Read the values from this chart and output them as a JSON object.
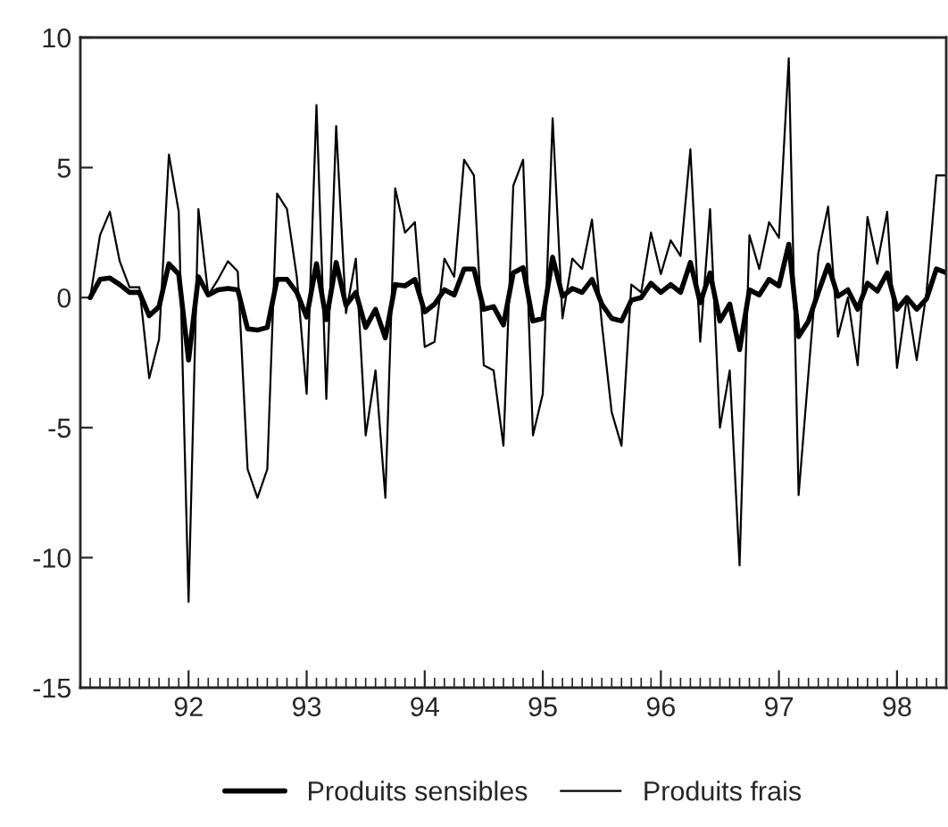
{
  "chart_data": {
    "type": "line",
    "x": [
      "1991-03",
      "1991-04",
      "1991-05",
      "1991-06",
      "1991-07",
      "1991-08",
      "1991-09",
      "1991-10",
      "1991-11",
      "1991-12",
      "1992-01",
      "1992-02",
      "1992-03",
      "1992-04",
      "1992-05",
      "1992-06",
      "1992-07",
      "1992-08",
      "1992-09",
      "1992-10",
      "1992-11",
      "1992-12",
      "1993-01",
      "1993-02",
      "1993-03",
      "1993-04",
      "1993-05",
      "1993-06",
      "1993-07",
      "1993-08",
      "1993-09",
      "1993-10",
      "1993-11",
      "1993-12",
      "1994-01",
      "1994-02",
      "1994-03",
      "1994-04",
      "1994-05",
      "1994-06",
      "1994-07",
      "1994-08",
      "1994-09",
      "1994-10",
      "1994-11",
      "1994-12",
      "1995-01",
      "1995-02",
      "1995-03",
      "1995-04",
      "1995-05",
      "1995-06",
      "1995-07",
      "1995-08",
      "1995-09",
      "1995-10",
      "1995-11",
      "1995-12",
      "1996-01",
      "1996-02",
      "1996-03",
      "1996-04",
      "1996-05",
      "1996-06",
      "1996-07",
      "1996-08",
      "1996-09",
      "1996-10",
      "1996-11",
      "1996-12",
      "1997-01",
      "1997-02",
      "1997-03",
      "1997-04",
      "1997-05",
      "1997-06",
      "1997-07",
      "1997-08",
      "1997-09",
      "1997-10",
      "1997-11",
      "1997-12",
      "1998-01",
      "1998-02",
      "1998-03",
      "1998-04",
      "1998-05",
      "1998-06"
    ],
    "series": [
      {
        "name": "Produits sensibles",
        "color": "#000000",
        "values": [
          0.0,
          0.7,
          0.75,
          0.5,
          0.2,
          0.2,
          -0.7,
          -0.35,
          1.3,
          0.9,
          -2.4,
          0.8,
          0.1,
          0.3,
          0.35,
          0.3,
          -1.2,
          -1.25,
          -1.15,
          0.7,
          0.7,
          0.2,
          -0.75,
          1.3,
          -0.85,
          1.35,
          -0.3,
          0.2,
          -1.15,
          -0.45,
          -1.55,
          0.5,
          0.45,
          0.7,
          -0.55,
          -0.25,
          0.3,
          0.1,
          1.1,
          1.1,
          -0.45,
          -0.35,
          -1.05,
          0.95,
          1.15,
          -0.9,
          -0.8,
          1.55,
          0.05,
          0.35,
          0.2,
          0.7,
          -0.25,
          -0.8,
          -0.9,
          -0.1,
          0.0,
          0.55,
          0.2,
          0.5,
          0.2,
          1.35,
          -0.2,
          0.95,
          -0.9,
          -0.25,
          -2.0,
          0.3,
          0.1,
          0.7,
          0.45,
          2.05,
          -1.5,
          -0.9,
          0.2,
          1.25,
          0.05,
          0.3,
          -0.45,
          0.55,
          0.25,
          0.95,
          -0.45,
          0.0,
          -0.45,
          -0.05,
          1.1,
          0.95
        ]
      },
      {
        "name": "Produits frais",
        "color": "#000000",
        "values": [
          0.0,
          2.4,
          3.3,
          1.4,
          0.4,
          0.4,
          -3.1,
          -1.6,
          5.5,
          3.3,
          -11.7,
          3.4,
          0.1,
          0.7,
          1.4,
          1.0,
          -6.6,
          -7.7,
          -6.6,
          4.0,
          3.4,
          0.8,
          -3.7,
          7.4,
          -3.9,
          6.6,
          -0.6,
          1.5,
          -5.3,
          -2.8,
          -7.7,
          4.2,
          2.5,
          2.9,
          -1.9,
          -1.7,
          1.5,
          0.8,
          5.3,
          4.7,
          -2.6,
          -2.8,
          -5.7,
          4.3,
          5.3,
          -5.3,
          -3.7,
          6.9,
          -0.8,
          1.5,
          1.1,
          3.0,
          -1.0,
          -4.4,
          -5.7,
          0.5,
          0.2,
          2.5,
          0.9,
          2.2,
          1.6,
          5.7,
          -1.7,
          3.4,
          -5.0,
          -2.8,
          -10.3,
          2.4,
          1.1,
          2.9,
          2.3,
          9.2,
          -7.6,
          -2.9,
          1.7,
          3.5,
          -1.5,
          0.0,
          -2.6,
          3.1,
          1.3,
          3.3,
          -2.7,
          0.0,
          -2.4,
          0.2,
          4.7,
          4.7
        ]
      }
    ],
    "xlim": [
      "1991-02",
      "1998-06"
    ],
    "xticks": [
      {
        "value": "1992-01",
        "label": "92"
      },
      {
        "value": "1993-01",
        "label": "93"
      },
      {
        "value": "1994-01",
        "label": "94"
      },
      {
        "value": "1995-01",
        "label": "95"
      },
      {
        "value": "1996-01",
        "label": "96"
      },
      {
        "value": "1997-01",
        "label": "97"
      },
      {
        "value": "1998-01",
        "label": "98"
      }
    ],
    "ylim": [
      -15,
      10
    ],
    "yticks": [
      -15,
      -10,
      -5,
      0,
      5,
      10
    ],
    "grid": false,
    "legend": "bottom",
    "marker": "none",
    "line_style": "solid"
  }
}
